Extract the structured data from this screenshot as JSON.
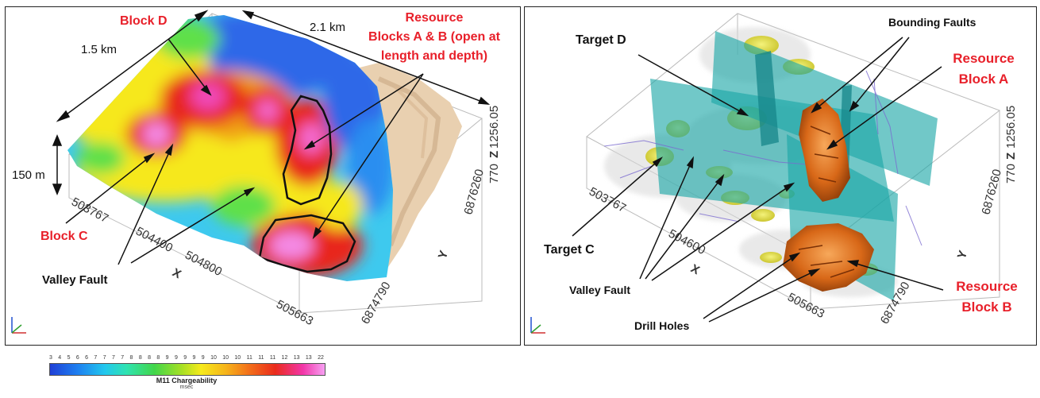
{
  "left_panel": {
    "labels": {
      "block_d": "Block D",
      "block_c": "Block C",
      "resource_line1": "Resource",
      "resource_line2": "Blocks A & B (open at",
      "resource_line3": "length and depth)",
      "valley_fault": "Valley Fault",
      "dim_1_5km": "1.5 km",
      "dim_2_1km": "2.1 km",
      "dim_150m": "150 m"
    },
    "axis": {
      "x_ticks": [
        "503767",
        "504400",
        "504800",
        "505663"
      ],
      "y_ticks": [
        "6876260",
        "6874790"
      ],
      "z_ticks": [
        "1256.05",
        "770"
      ],
      "x_label": "X",
      "y_label": "Y",
      "z_label": "Z"
    }
  },
  "right_panel": {
    "labels": {
      "target_d": "Target D",
      "target_c": "Target C",
      "bounding_faults": "Bounding Faults",
      "resource_a_line1": "Resource",
      "resource_a_line2": "Block A",
      "resource_b_line1": "Resource",
      "resource_b_line2": "Block B",
      "valley_fault": "Valley Fault",
      "drill_holes": "Drill Holes"
    },
    "axis": {
      "x_ticks": [
        "503767",
        "504600",
        "505663"
      ],
      "y_ticks": [
        "6876260",
        "6874790"
      ],
      "z_ticks": [
        "1256.05",
        "770"
      ],
      "x_label": "X",
      "y_label": "Y",
      "z_label": "Z"
    }
  },
  "colorbar": {
    "tick_values": [
      "3",
      "4",
      "5",
      "6",
      "6",
      "7",
      "7",
      "7",
      "7",
      "8",
      "8",
      "8",
      "8",
      "9",
      "9",
      "9",
      "9",
      "9",
      "10",
      "10",
      "10",
      "11",
      "11",
      "11",
      "12",
      "13",
      "13",
      "22"
    ],
    "title": "M11 Chargeability",
    "unit": "msec"
  },
  "colors": {
    "annotation_red": "#e8202a",
    "fault_plane": "#1aa6a6",
    "ore_body": "#e07820",
    "target_body": "#e6e44a"
  }
}
